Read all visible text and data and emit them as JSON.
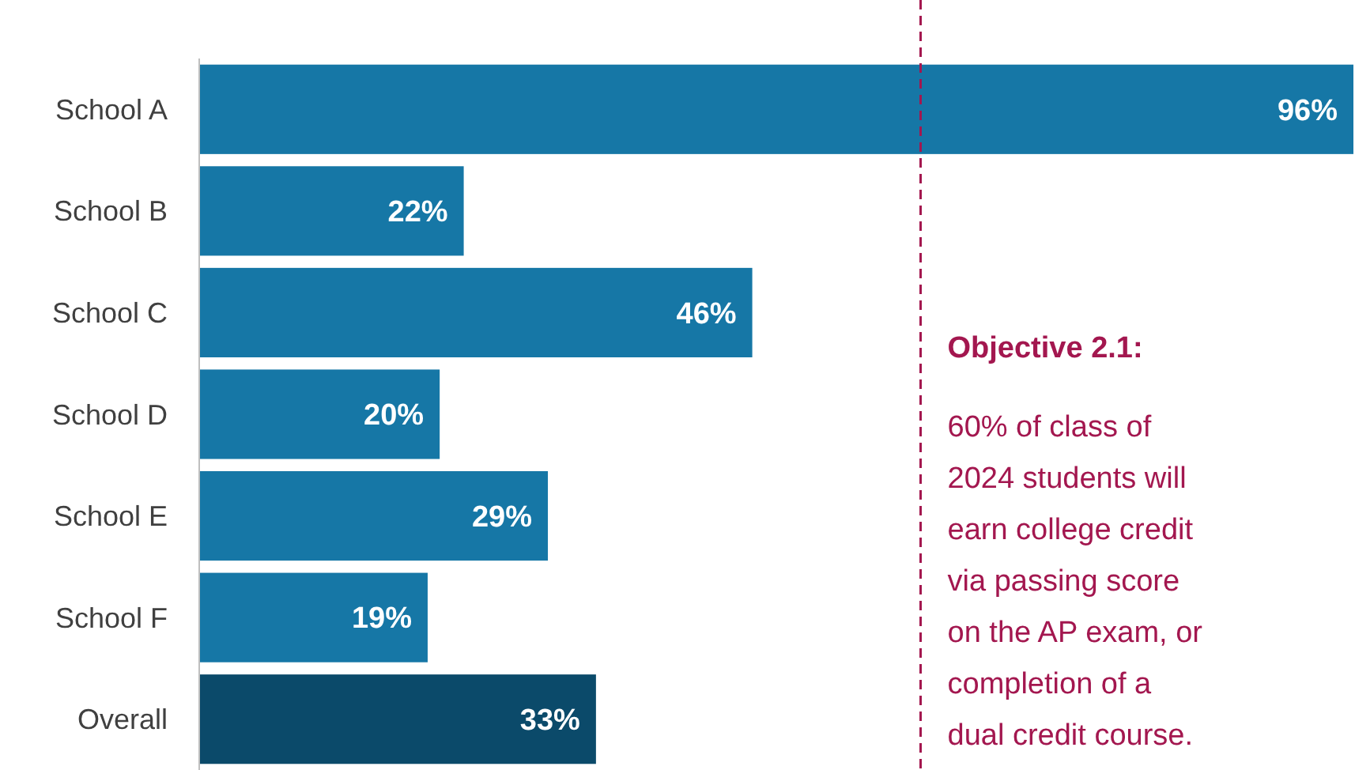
{
  "chart_data": {
    "type": "bar",
    "orientation": "horizontal",
    "categories": [
      "School A",
      "School B",
      "School C",
      "School D",
      "School E",
      "School F",
      "Overall"
    ],
    "values": [
      96,
      22,
      46,
      20,
      29,
      19,
      33
    ],
    "colors": [
      "#1677a6",
      "#1677a6",
      "#1677a6",
      "#1677a6",
      "#1677a6",
      "#1677a6",
      "#0b4a6a"
    ],
    "value_labels": [
      "96%",
      "22%",
      "46%",
      "20%",
      "29%",
      "19%",
      "33%"
    ],
    "ref_lines": [
      {
        "axis": "x",
        "value": 60,
        "label": "Objective 2.1:",
        "color": "#a3174f",
        "line_style": "dashed"
      }
    ],
    "annotations": [
      "60% of class of 2024 students will earn college credit via passing score on the AP exam, or completion of a dual credit course."
    ],
    "stacked": false
  }
}
